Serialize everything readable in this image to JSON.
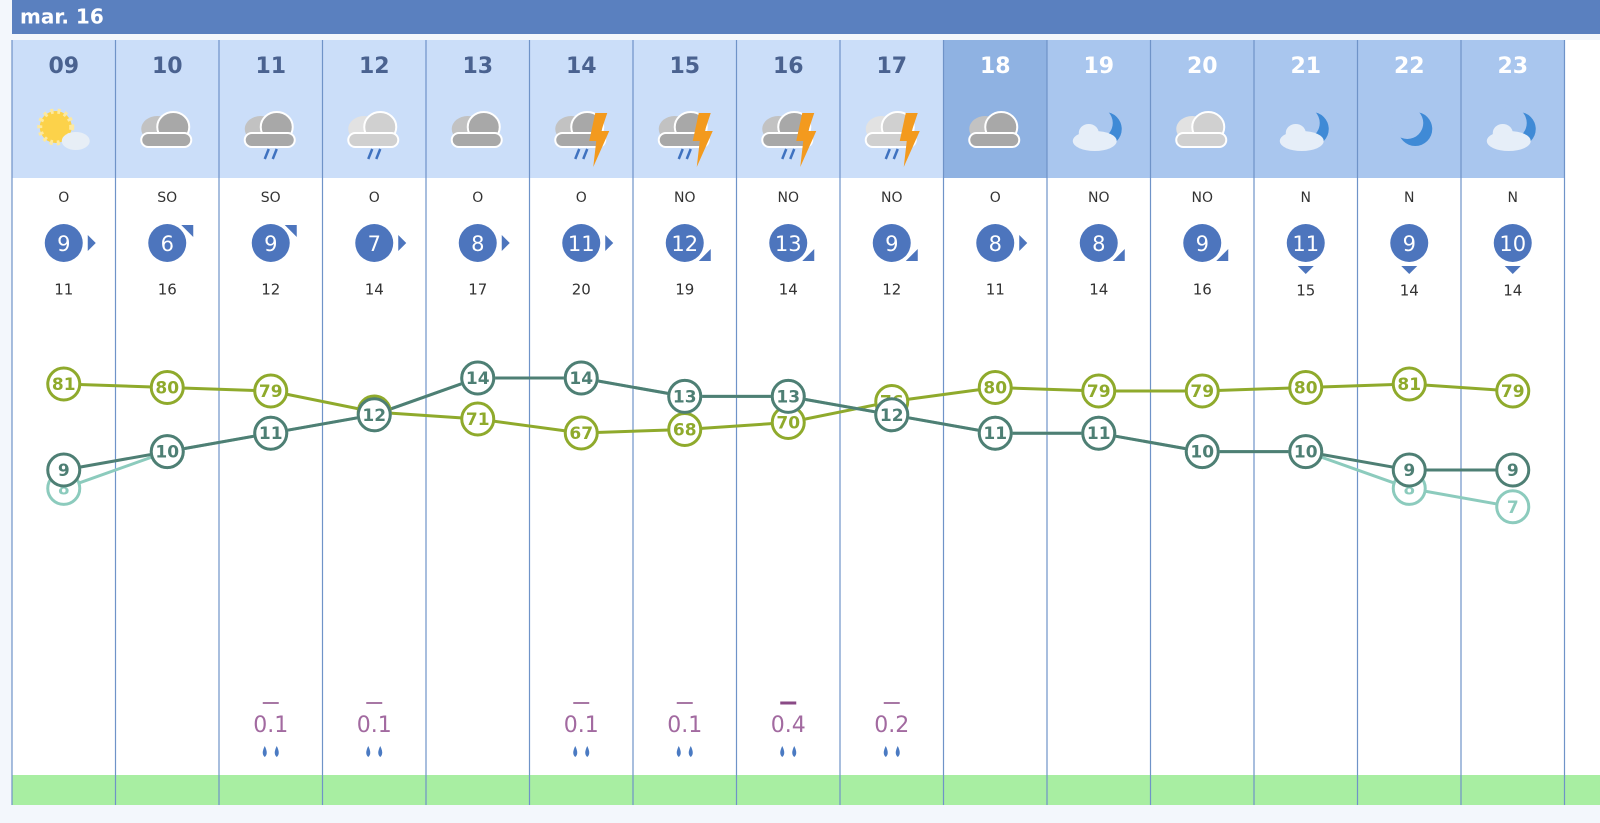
{
  "title": "mar. 16",
  "hours": [
    "09",
    "10",
    "11",
    "12",
    "13",
    "14",
    "15",
    "16",
    "17",
    "18",
    "19",
    "20",
    "21",
    "22",
    "23"
  ],
  "wind_directions": [
    "O",
    "SO",
    "SO",
    "O",
    "O",
    "O",
    "NO",
    "NO",
    "NO",
    "O",
    "NO",
    "NO",
    "N",
    "N",
    "N"
  ],
  "wind_speeds": [
    9,
    6,
    9,
    7,
    8,
    11,
    12,
    13,
    9,
    8,
    8,
    9,
    11,
    9,
    10
  ],
  "gusts": [
    11,
    16,
    12,
    14,
    17,
    20,
    19,
    14,
    12,
    11,
    14,
    16,
    15,
    14,
    14
  ],
  "temperature": [
    9,
    10,
    11,
    12,
    14,
    14,
    13,
    13,
    12,
    11,
    11,
    10,
    10,
    9,
    9
  ],
  "feels_like": [
    8,
    10,
    11,
    12,
    14,
    14,
    13,
    13,
    12,
    11,
    11,
    10,
    10,
    8,
    7
  ],
  "humidity": [
    81,
    80,
    79,
    73,
    71,
    67,
    68,
    70,
    76,
    80,
    79,
    79,
    80,
    81,
    79
  ],
  "precipitation": [
    null,
    null,
    0.1,
    0.1,
    null,
    0.1,
    0.1,
    0.4,
    0.2,
    null,
    null,
    null,
    null,
    null,
    null
  ]
}
